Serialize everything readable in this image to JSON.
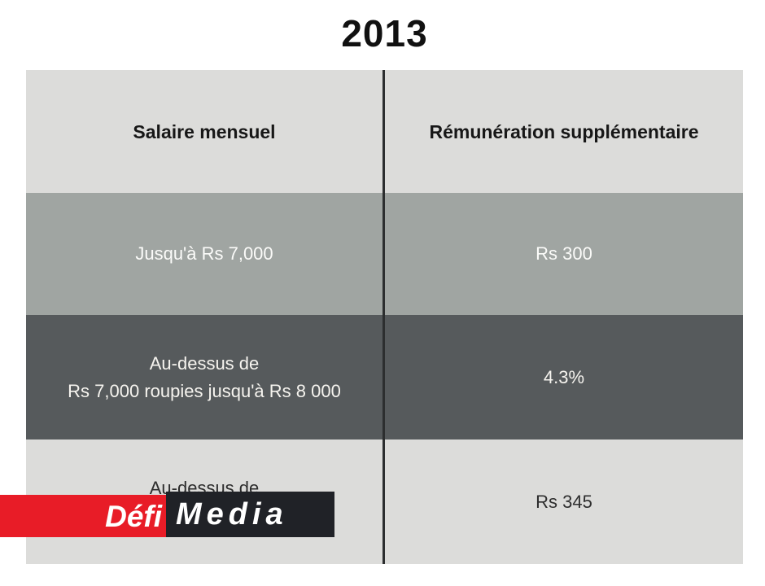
{
  "title": "2013",
  "table": {
    "headers": [
      "Salaire mensuel",
      "Rémunération supplémentaire"
    ],
    "rows": [
      {
        "salary": "Jusqu'à Rs 7,000",
        "compensation": "Rs 300"
      },
      {
        "salary_line1": "Au-dessus de",
        "salary_line2": "Rs 7,000 roupies jusqu'à Rs 8 000",
        "compensation": "4.3%"
      },
      {
        "salary_line1": "Au-dessus de",
        "compensation": "Rs 345"
      }
    ]
  },
  "logo": {
    "part1": "Défi",
    "part2": "Media"
  },
  "colors": {
    "row_light": "#dcdcda",
    "row_medium": "#a0a5a2",
    "row_dark": "#565a5c",
    "divider": "#2c2e2f",
    "logo_red": "#e81c27",
    "logo_black": "#202227"
  },
  "chart_data": {
    "type": "table",
    "title": "2013",
    "columns": [
      "Salaire mensuel",
      "Rémunération supplémentaire"
    ],
    "rows": [
      [
        "Jusqu'à Rs 7,000",
        "Rs 300"
      ],
      [
        "Au-dessus de\nRs 7,000 roupies jusqu'à Rs 8 000",
        "4.3%"
      ],
      [
        "Au-dessus de",
        "Rs 345"
      ]
    ],
    "legend_position": "none",
    "grid": false
  }
}
